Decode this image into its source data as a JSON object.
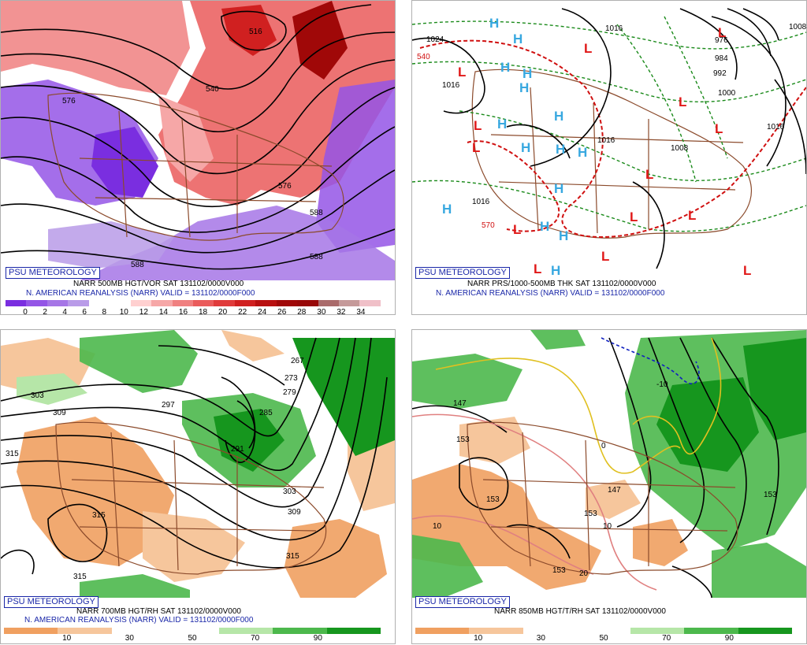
{
  "panels": {
    "p500": {
      "logo": "PSU METEOROLOGY",
      "title_line1": "NARR 500MB HGT/VOR SAT 131102/0000V000",
      "title_line2": "N. AMERICAN REANALYSIS (NARR) VALID = 131102/0000F000",
      "colorbar": {
        "labels": [
          "0",
          "2",
          "4",
          "6",
          "8",
          "10",
          "12",
          "14",
          "16",
          "18",
          "20",
          "22",
          "24",
          "26",
          "28",
          "30",
          "32",
          "34"
        ],
        "colors": [
          "#7a2ee0",
          "#9455e6",
          "#a676e6",
          "#b99be8",
          "#ffffff",
          "#ffffff",
          "#ffd0d0",
          "#f6a7a7",
          "#f08080",
          "#ea5b5b",
          "#e03b3b",
          "#d02020",
          "#b81010",
          "#a00808",
          "#980808",
          "#aa6b6b",
          "#c59a9a",
          "#f0c0c8"
        ]
      },
      "contour_labels": [
        "516",
        "540",
        "576",
        "576",
        "588",
        "588",
        "588"
      ]
    },
    "psfc": {
      "logo": "PSU METEOROLOGY",
      "title_line1": "NARR PRS/1000-500MB THK SAT 131102/0000V000",
      "title_line2": "N. AMERICAN REANALYSIS (NARR) VALID = 131102/0000F000",
      "contour_labels": [
        "1024",
        "1016",
        "1016",
        "1016",
        "1016",
        "1008",
        "1016",
        "1000",
        "992",
        "984",
        "976",
        "1008",
        "540",
        "570"
      ],
      "high_marker": "H",
      "low_marker": "L"
    },
    "p700": {
      "logo": "PSU METEOROLOGY",
      "title_line1": "NARR 700MB HGT/RH SAT 131102/0000V000",
      "title_line2": "N. AMERICAN REANALYSIS (NARR) VALID = 131102/0000F000",
      "colorbar": {
        "labels": [
          "10",
          "30",
          "50",
          "70",
          "90"
        ],
        "colors": [
          "#f0a060",
          "#f6c69c",
          "#ffffff",
          "#ffffff",
          "#b6e6a8",
          "#4cb84c",
          "#16961e"
        ]
      },
      "contour_labels": [
        "303",
        "309",
        "315",
        "315",
        "315",
        "315",
        "297",
        "285",
        "291",
        "267",
        "273",
        "279",
        "303",
        "309",
        "315"
      ]
    },
    "p850": {
      "logo": "PSU METEOROLOGY",
      "title_line1": "NARR 850MB HGT/T/RH SAT 131102/0000V000",
      "colorbar": {
        "labels": [
          "10",
          "30",
          "50",
          "70",
          "90"
        ],
        "colors": [
          "#f0a060",
          "#f6c69c",
          "#ffffff",
          "#ffffff",
          "#b6e6a8",
          "#4cb84c",
          "#16961e"
        ]
      },
      "contour_labels": [
        "147",
        "153",
        "153",
        "153",
        "153",
        "147",
        "10",
        "10",
        "20",
        "-10",
        "0",
        "153"
      ]
    }
  },
  "colors": {
    "map_border": "#8b4a2b",
    "psu_blue": "#1a27a8",
    "high_cyan": "#38a8e0",
    "low_red": "#e01818",
    "thk_green": "#1a8a1a",
    "thk_red": "#d01010",
    "temp_yellow": "#e0c020",
    "temp_pink": "#e08080",
    "temp_blue": "#1020c0"
  }
}
